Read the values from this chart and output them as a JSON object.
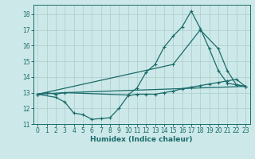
{
  "title": "",
  "xlabel": "Humidex (Indice chaleur)",
  "xlim": [
    -0.5,
    23.5
  ],
  "ylim": [
    11,
    18.6
  ],
  "xticks": [
    0,
    1,
    2,
    3,
    4,
    5,
    6,
    7,
    8,
    9,
    10,
    11,
    12,
    13,
    14,
    15,
    16,
    17,
    18,
    19,
    20,
    21,
    22,
    23
  ],
  "yticks": [
    11,
    12,
    13,
    14,
    15,
    16,
    17,
    18
  ],
  "bg_color": "#cde8e8",
  "grid_color": "#b0d0d0",
  "line_color": "#1a6b6b",
  "line1_x": [
    0,
    1,
    2,
    3,
    10,
    11,
    12,
    13,
    14,
    15,
    16,
    17,
    18,
    19,
    20,
    21,
    22,
    23
  ],
  "line1_y": [
    12.9,
    13.0,
    12.9,
    13.0,
    12.85,
    13.3,
    14.3,
    14.8,
    15.9,
    16.6,
    17.2,
    18.2,
    17.1,
    15.8,
    14.4,
    13.6,
    13.5,
    13.4
  ],
  "line2_x": [
    0,
    3,
    23
  ],
  "line2_y": [
    12.9,
    13.0,
    13.4
  ],
  "line3_x": [
    0,
    15,
    18,
    20,
    21,
    22,
    23
  ],
  "line3_y": [
    12.9,
    14.8,
    17.0,
    15.8,
    14.4,
    13.5,
    13.4
  ],
  "line4_x": [
    0,
    2,
    3,
    4,
    5,
    6,
    7,
    8,
    9,
    10,
    11,
    12,
    13,
    14,
    15,
    16,
    17,
    18,
    19,
    20,
    21,
    22,
    23
  ],
  "line4_y": [
    12.9,
    12.7,
    12.4,
    11.7,
    11.6,
    11.3,
    11.35,
    11.4,
    12.0,
    12.8,
    12.9,
    12.9,
    12.9,
    13.0,
    13.1,
    13.25,
    13.35,
    13.45,
    13.55,
    13.65,
    13.75,
    13.85,
    13.4
  ]
}
